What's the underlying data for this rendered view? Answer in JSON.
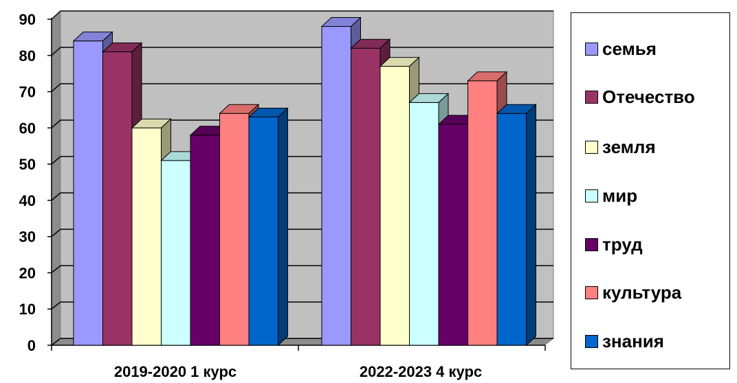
{
  "chart_data": {
    "type": "bar",
    "categories": [
      "2019-2020 1 курс",
      "2022-2023 4 курс"
    ],
    "series": [
      {
        "name": "семья",
        "values": [
          84,
          88
        ],
        "color": "#9999FF"
      },
      {
        "name": "Отечество",
        "values": [
          81,
          82
        ],
        "color": "#993366"
      },
      {
        "name": "земля",
        "values": [
          60,
          77
        ],
        "color": "#FFFFCC"
      },
      {
        "name": "мир",
        "values": [
          51,
          67
        ],
        "color": "#CCFFFF"
      },
      {
        "name": "труд",
        "values": [
          58,
          61
        ],
        "color": "#660066"
      },
      {
        "name": "культура",
        "values": [
          64,
          73
        ],
        "color": "#FF8080"
      },
      {
        "name": "знания",
        "values": [
          63,
          64
        ],
        "color": "#0066CC"
      }
    ],
    "yticks": [
      "0",
      "10",
      "20",
      "30",
      "40",
      "50",
      "60",
      "70",
      "80",
      "90"
    ],
    "ylim": [
      0,
      90
    ],
    "grid": true,
    "legend_position": "right",
    "style": "3d-clustered-column"
  }
}
